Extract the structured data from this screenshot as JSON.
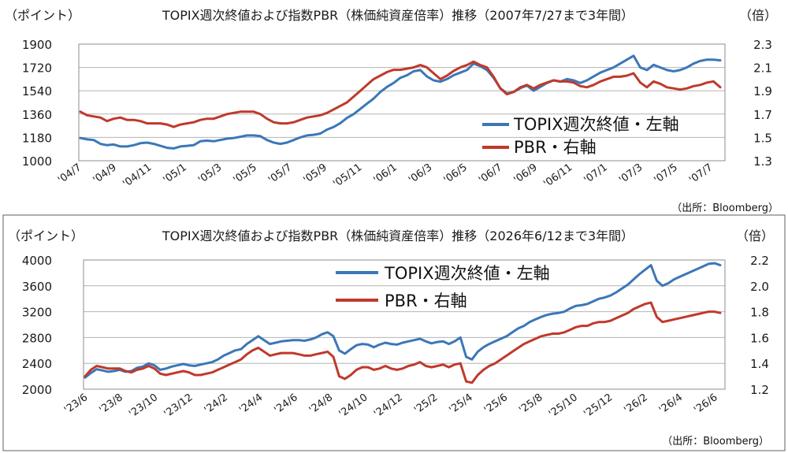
{
  "chart_data": [
    {
      "type": "line",
      "title": "TOPIX週次終値および指数PBR（株価純資産倍率）推移（2007年7/27まで3年間）",
      "left_unit": "（ポイント）",
      "right_unit": "（倍）",
      "source": "（出所：Bloomberg）",
      "y_left": {
        "ylim": [
          1000,
          1900
        ],
        "ticks": [
          "1000",
          "1180",
          "1360",
          "1540",
          "1720",
          "1900"
        ]
      },
      "y_right": {
        "ylim": [
          1.3,
          2.3
        ],
        "ticks": [
          "1.3",
          "1.5",
          "1.7",
          "1.9",
          "2.1",
          "2.3"
        ]
      },
      "x_ticks": [
        "'04/7",
        "'04/9",
        "'04/11",
        "'05/1",
        "'05/3",
        "'05/5",
        "'05/7",
        "'05/9",
        "'05/11",
        "'06/1",
        "'06/3",
        "'06/5",
        "'06/7",
        "'06/9",
        "'06/11",
        "'07/1",
        "'07/3",
        "'07/5",
        "'07/7"
      ],
      "grid": true,
      "legend_position": "center-right",
      "series": [
        {
          "name": "TOPIX週次終値・左軸",
          "axis": "left",
          "color": "#3b77b8",
          "values": [
            1175,
            1165,
            1160,
            1130,
            1120,
            1125,
            1110,
            1110,
            1120,
            1135,
            1140,
            1130,
            1115,
            1100,
            1095,
            1110,
            1115,
            1120,
            1150,
            1155,
            1150,
            1160,
            1170,
            1175,
            1185,
            1195,
            1195,
            1190,
            1160,
            1140,
            1130,
            1140,
            1160,
            1180,
            1195,
            1200,
            1210,
            1240,
            1260,
            1290,
            1330,
            1360,
            1400,
            1440,
            1480,
            1530,
            1570,
            1600,
            1640,
            1660,
            1690,
            1700,
            1650,
            1620,
            1610,
            1630,
            1660,
            1680,
            1700,
            1750,
            1730,
            1700,
            1640,
            1560,
            1520,
            1530,
            1560,
            1580,
            1540,
            1570,
            1600,
            1620,
            1610,
            1630,
            1620,
            1600,
            1620,
            1650,
            1680,
            1700,
            1720,
            1750,
            1780,
            1810,
            1720,
            1700,
            1740,
            1720,
            1700,
            1690,
            1700,
            1720,
            1750,
            1770,
            1780,
            1780,
            1775
          ]
        },
        {
          "name": "PBR・右軸",
          "axis": "right",
          "color": "#c0392b",
          "values": [
            1.72,
            1.69,
            1.68,
            1.67,
            1.64,
            1.66,
            1.67,
            1.65,
            1.65,
            1.64,
            1.62,
            1.62,
            1.62,
            1.61,
            1.59,
            1.61,
            1.62,
            1.63,
            1.65,
            1.66,
            1.66,
            1.68,
            1.7,
            1.71,
            1.72,
            1.72,
            1.72,
            1.7,
            1.66,
            1.63,
            1.62,
            1.62,
            1.63,
            1.65,
            1.67,
            1.68,
            1.69,
            1.71,
            1.74,
            1.77,
            1.8,
            1.85,
            1.9,
            1.95,
            2.0,
            2.03,
            2.06,
            2.08,
            2.08,
            2.09,
            2.1,
            2.12,
            2.1,
            2.05,
            2.0,
            2.03,
            2.07,
            2.1,
            2.12,
            2.15,
            2.12,
            2.1,
            2.02,
            1.92,
            1.87,
            1.89,
            1.93,
            1.95,
            1.92,
            1.95,
            1.97,
            1.99,
            1.98,
            1.98,
            1.97,
            1.94,
            1.93,
            1.95,
            1.98,
            2.0,
            2.02,
            2.02,
            2.03,
            2.05,
            1.97,
            1.93,
            1.98,
            1.96,
            1.93,
            1.92,
            1.91,
            1.92,
            1.94,
            1.95,
            1.97,
            1.98,
            1.93
          ]
        }
      ]
    },
    {
      "type": "line",
      "title": "TOPIX週次終値および指数PBR（株価純資産倍率）推移（2026年6/12まで3年間）",
      "left_unit": "（ポイント）",
      "right_unit": "（倍）",
      "source": "（出所：Bloomberg）",
      "y_left": {
        "ylim": [
          2000,
          4000
        ],
        "ticks": [
          "2000",
          "2400",
          "2800",
          "3200",
          "3600",
          "4000"
        ]
      },
      "y_right": {
        "ylim": [
          1.2,
          2.2
        ],
        "ticks": [
          "1.2",
          "1.4",
          "1.6",
          "1.8",
          "2.0",
          "2.2"
        ]
      },
      "x_ticks": [
        "'23/6",
        "'23/8",
        "'23/10",
        "'23/12",
        "'24/2",
        "'24/4",
        "'24/6",
        "'24/8",
        "'24/10",
        "'24/12",
        "'25/2",
        "'25/4",
        "'25/6",
        "'25/8",
        "'25/10",
        "'25/12",
        "'26/2",
        "'26/4",
        "'26/6"
      ],
      "grid": true,
      "legend_position": "top-center",
      "series": [
        {
          "name": "TOPIX週次終値・左軸",
          "axis": "left",
          "color": "#3b77b8",
          "values": [
            2180,
            2250,
            2310,
            2290,
            2270,
            2280,
            2300,
            2270,
            2280,
            2330,
            2350,
            2400,
            2370,
            2300,
            2320,
            2350,
            2370,
            2390,
            2370,
            2360,
            2380,
            2400,
            2420,
            2460,
            2520,
            2560,
            2600,
            2620,
            2700,
            2760,
            2820,
            2760,
            2700,
            2720,
            2740,
            2750,
            2760,
            2760,
            2750,
            2770,
            2800,
            2850,
            2880,
            2820,
            2600,
            2550,
            2620,
            2680,
            2700,
            2690,
            2650,
            2690,
            2720,
            2700,
            2690,
            2720,
            2740,
            2760,
            2780,
            2740,
            2710,
            2730,
            2740,
            2700,
            2740,
            2800,
            2500,
            2460,
            2580,
            2650,
            2700,
            2740,
            2780,
            2820,
            2880,
            2940,
            2980,
            3040,
            3080,
            3120,
            3150,
            3170,
            3180,
            3200,
            3250,
            3290,
            3300,
            3320,
            3360,
            3400,
            3420,
            3450,
            3500,
            3560,
            3620,
            3700,
            3780,
            3850,
            3920,
            3680,
            3600,
            3640,
            3700,
            3740,
            3780,
            3820,
            3860,
            3900,
            3940,
            3950,
            3920
          ]
        },
        {
          "name": "PBR・右軸",
          "axis": "right",
          "color": "#c0392b",
          "values": [
            1.3,
            1.35,
            1.38,
            1.37,
            1.36,
            1.36,
            1.36,
            1.34,
            1.33,
            1.35,
            1.36,
            1.38,
            1.36,
            1.32,
            1.31,
            1.32,
            1.33,
            1.34,
            1.33,
            1.31,
            1.31,
            1.32,
            1.33,
            1.35,
            1.37,
            1.39,
            1.41,
            1.43,
            1.47,
            1.5,
            1.52,
            1.49,
            1.46,
            1.47,
            1.48,
            1.48,
            1.48,
            1.47,
            1.46,
            1.46,
            1.47,
            1.48,
            1.49,
            1.45,
            1.3,
            1.28,
            1.31,
            1.35,
            1.37,
            1.37,
            1.35,
            1.36,
            1.38,
            1.36,
            1.35,
            1.36,
            1.38,
            1.39,
            1.41,
            1.38,
            1.37,
            1.38,
            1.39,
            1.37,
            1.39,
            1.4,
            1.26,
            1.25,
            1.31,
            1.35,
            1.38,
            1.4,
            1.43,
            1.46,
            1.49,
            1.52,
            1.55,
            1.57,
            1.59,
            1.61,
            1.62,
            1.63,
            1.63,
            1.64,
            1.66,
            1.68,
            1.69,
            1.69,
            1.71,
            1.72,
            1.72,
            1.73,
            1.75,
            1.77,
            1.79,
            1.82,
            1.84,
            1.86,
            1.87,
            1.76,
            1.72,
            1.73,
            1.74,
            1.75,
            1.76,
            1.77,
            1.78,
            1.79,
            1.8,
            1.8,
            1.79
          ]
        }
      ]
    }
  ]
}
